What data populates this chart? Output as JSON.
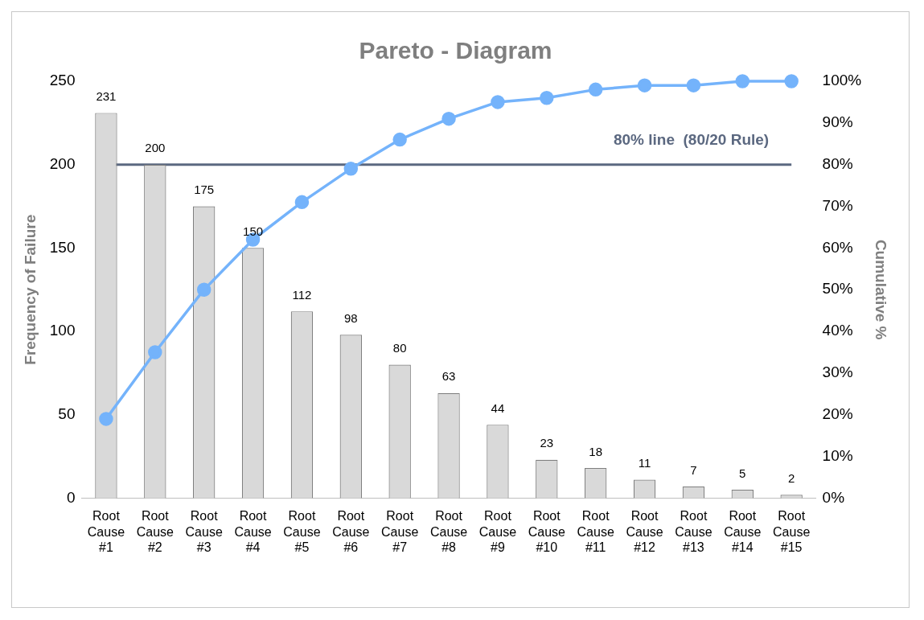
{
  "chart_data": {
    "type": "bar",
    "title": "Pareto - Diagram",
    "ylabel": "Frequency of Failure",
    "y2label": "Cumulative %",
    "categories": [
      "Root Cause #1",
      "Root Cause #2",
      "Root Cause #3",
      "Root Cause #4",
      "Root Cause #5",
      "Root Cause #6",
      "Root Cause #7",
      "Root Cause #8",
      "Root Cause #9",
      "Root Cause #10",
      "Root Cause #11",
      "Root Cause #12",
      "Root Cause #13",
      "Root Cause #14",
      "Root Cause #15"
    ],
    "series": [
      {
        "color": "#d9d9d9",
        "values": [
          231,
          200,
          175,
          150,
          112,
          98,
          80,
          63,
          44,
          23,
          18,
          11,
          7,
          5,
          2
        ],
        "value_labels": [
          "231",
          "200",
          "175",
          "150",
          "112",
          "98",
          "80",
          "63",
          "44",
          "23",
          "18",
          "11",
          "7",
          "5",
          "2"
        ]
      },
      {
        "type": "line",
        "axis": "y2",
        "color": "#74b3fb",
        "marker": "circle",
        "values": [
          19,
          35,
          50,
          62,
          71,
          79,
          86,
          91,
          95,
          96,
          98,
          99,
          99,
          100,
          100
        ]
      }
    ],
    "ylim": [
      0,
      250
    ],
    "yticks": [
      0,
      50,
      100,
      150,
      200,
      250
    ],
    "y2lim": [
      0,
      100
    ],
    "y2ticks": [
      {
        "value": 0,
        "label": "0%"
      },
      {
        "value": 10,
        "label": "10%"
      },
      {
        "value": 20,
        "label": "20%"
      },
      {
        "value": 30,
        "label": "30%"
      },
      {
        "value": 40,
        "label": "40%"
      },
      {
        "value": 50,
        "label": "50%"
      },
      {
        "value": 60,
        "label": "60%"
      },
      {
        "value": 70,
        "label": "70%"
      },
      {
        "value": 80,
        "label": "80%"
      },
      {
        "value": 90,
        "label": "90%"
      },
      {
        "value": 100,
        "label": "100%"
      }
    ],
    "ref_lines": [
      {
        "axis": "y2",
        "value": 80,
        "label": "80% line  (80/20 Rule)",
        "color": "#5b6880"
      }
    ],
    "grid": false,
    "legend": false
  }
}
